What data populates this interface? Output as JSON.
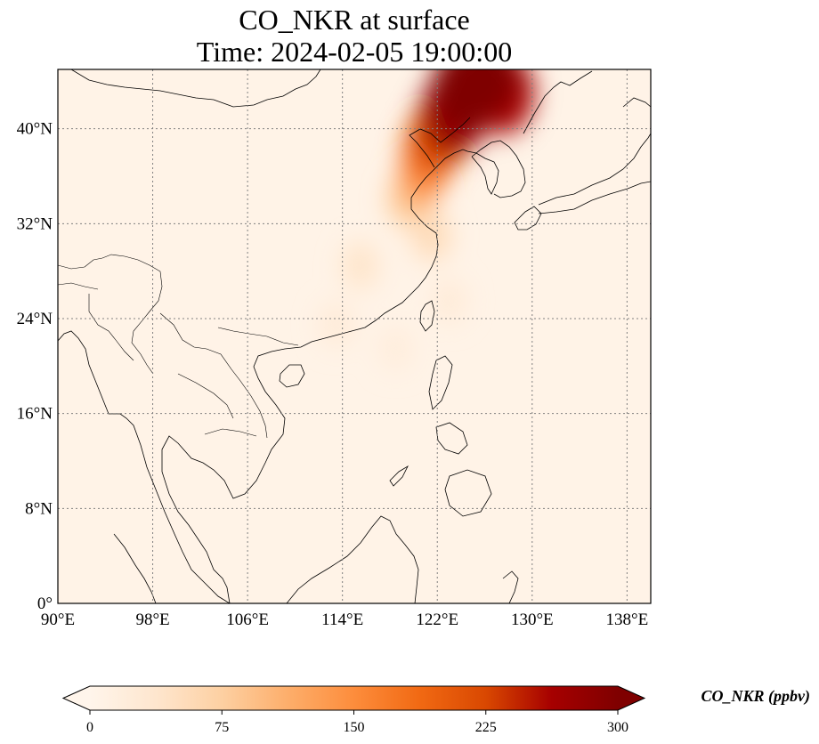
{
  "title": {
    "line1": "CO_NKR at surface",
    "line2": "Time: 2024-02-05 19:00:00"
  },
  "chart_data": {
    "type": "heatmap",
    "title": "CO_NKR at surface",
    "subtitle": "Time: 2024-02-05 19:00:00",
    "xlim": [
      90,
      140
    ],
    "ylim": [
      0,
      45
    ],
    "x_ticks": [
      90,
      98,
      106,
      114,
      122,
      130,
      138
    ],
    "x_tick_labels": [
      "90°E",
      "98°E",
      "106°E",
      "114°E",
      "122°E",
      "130°E",
      "138°E"
    ],
    "y_ticks": [
      0,
      8,
      16,
      24,
      32,
      40
    ],
    "y_tick_labels": [
      "0°",
      "8°N",
      "16°N",
      "24°N",
      "32°N",
      "40°N"
    ],
    "grid": true,
    "colormap": [
      "#fff5eb",
      "#fee6ce",
      "#fdd0a2",
      "#fdae6b",
      "#fd8d3c",
      "#f16913",
      "#d94801",
      "#a60000",
      "#7f0000"
    ],
    "colorbar": {
      "label": "CO_NKR (ppbv)",
      "min": 0,
      "max": 300,
      "ticks": [
        0,
        75,
        150,
        225,
        300
      ],
      "tick_labels": [
        "0",
        "75",
        "150",
        "225",
        "300"
      ],
      "extend": "both",
      "orientation": "horizontal"
    },
    "plumes": [
      {
        "lon": 124.5,
        "lat": 43.5,
        "value": 300
      },
      {
        "lon": 126.0,
        "lat": 44.5,
        "value": 300
      },
      {
        "lon": 127.5,
        "lat": 43.0,
        "value": 260
      },
      {
        "lon": 123.5,
        "lat": 41.5,
        "value": 280
      },
      {
        "lon": 122.5,
        "lat": 40.0,
        "value": 230
      },
      {
        "lon": 121.5,
        "lat": 38.5,
        "value": 190
      },
      {
        "lon": 121.0,
        "lat": 37.0,
        "value": 150
      },
      {
        "lon": 120.5,
        "lat": 35.5,
        "value": 110
      },
      {
        "lon": 119.5,
        "lat": 34.0,
        "value": 75
      },
      {
        "lon": 121.5,
        "lat": 31.0,
        "value": 55
      },
      {
        "lon": 115.5,
        "lat": 28.5,
        "value": 40
      },
      {
        "lon": 113.5,
        "lat": 23.5,
        "value": 25
      },
      {
        "lon": 118.5,
        "lat": 21.5,
        "value": 20
      },
      {
        "lon": 123.0,
        "lat": 25.5,
        "value": 25
      }
    ],
    "background_value": 5
  },
  "colors": {
    "background": "#fff5eb",
    "coastline": "#000000",
    "grid": "#808080"
  }
}
